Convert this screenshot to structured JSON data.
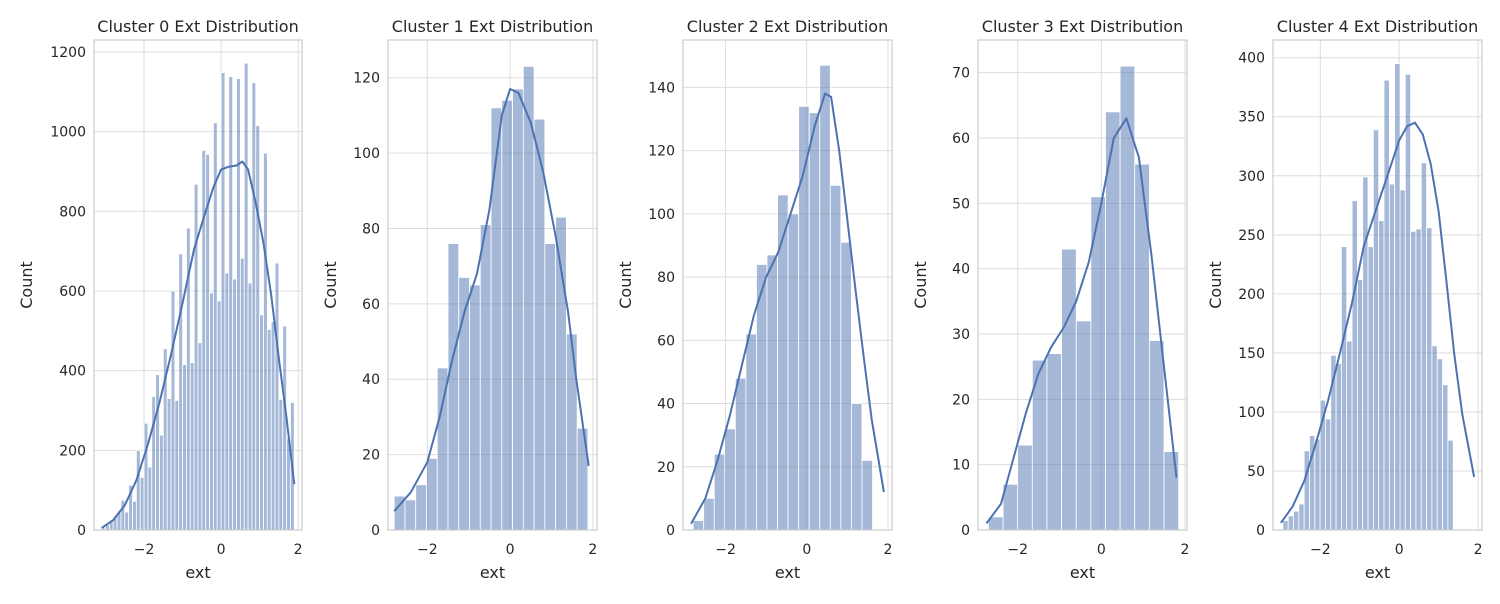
{
  "chart_data": [
    {
      "type": "bar",
      "title": "Cluster 0 Ext Distribution",
      "xlabel": "ext",
      "ylabel": "Count",
      "xlim": [
        -3.3,
        2.1
      ],
      "ylim": [
        0,
        1230
      ],
      "xticks": [
        -2,
        0,
        2
      ],
      "yticks": [
        0,
        200,
        400,
        600,
        800,
        1000,
        1200
      ],
      "grid": true,
      "bin_start": -3.1,
      "bin_width": 0.1,
      "values": [
        5,
        12,
        22,
        35,
        48,
        75,
        45,
        112,
        72,
        200,
        132,
        268,
        158,
        335,
        390,
        238,
        455,
        330,
        600,
        325,
        693,
        415,
        758,
        420,
        868,
        470,
        953,
        943,
        595,
        1022,
        575,
        1148,
        645,
        1138,
        630,
        1133,
        682,
        1172,
        620,
        1123,
        1015,
        540,
        946,
        503,
        523,
        670,
        328,
        512,
        230,
        320
      ],
      "kde": {
        "x": [
          -3.1,
          -2.8,
          -2.5,
          -2.2,
          -1.9,
          -1.6,
          -1.3,
          -1.0,
          -0.7,
          -0.4,
          -0.2,
          0.0,
          0.2,
          0.4,
          0.55,
          0.7,
          0.9,
          1.1,
          1.3,
          1.5,
          1.7,
          1.9
        ],
        "y": [
          5,
          25,
          62,
          125,
          215,
          320,
          440,
          570,
          705,
          800,
          860,
          905,
          912,
          915,
          925,
          905,
          820,
          720,
          590,
          430,
          280,
          115
        ]
      }
    },
    {
      "type": "bar",
      "title": "Cluster 1 Ext Distribution",
      "xlabel": "ext",
      "ylabel": "Count",
      "xlim": [
        -2.95,
        2.1
      ],
      "ylim": [
        0,
        130
      ],
      "xticks": [
        -2,
        0,
        2
      ],
      "yticks": [
        0,
        20,
        40,
        60,
        80,
        100,
        120
      ],
      "grid": true,
      "bin_start": -2.8,
      "bin_width": 0.26,
      "values": [
        9,
        8,
        12,
        19,
        43,
        76,
        67,
        65,
        81,
        112,
        114,
        117,
        123,
        109,
        76,
        83,
        52,
        27
      ],
      "kde": {
        "x": [
          -2.8,
          -2.4,
          -2.0,
          -1.7,
          -1.4,
          -1.1,
          -0.8,
          -0.5,
          -0.2,
          0.0,
          0.2,
          0.5,
          0.8,
          1.1,
          1.4,
          1.6,
          1.9
        ],
        "y": [
          5,
          10,
          18,
          30,
          45,
          58,
          68,
          85,
          110,
          117,
          116,
          108,
          95,
          78,
          58,
          40,
          17
        ]
      }
    },
    {
      "type": "bar",
      "title": "Cluster 2 Ext Distribution",
      "xlabel": "ext",
      "ylabel": "Count",
      "xlim": [
        -3.05,
        2.1
      ],
      "ylim": [
        0,
        155
      ],
      "xticks": [
        -2,
        0,
        2
      ],
      "yticks": [
        0,
        20,
        40,
        60,
        80,
        100,
        120,
        140
      ],
      "grid": true,
      "bin_start": -2.8,
      "bin_width": 0.26,
      "values": [
        3,
        10,
        24,
        32,
        48,
        62,
        84,
        87,
        106,
        100,
        134,
        132,
        147,
        109,
        91,
        40,
        22
      ],
      "kde": {
        "x": [
          -2.85,
          -2.5,
          -2.2,
          -1.9,
          -1.6,
          -1.3,
          -1.0,
          -0.7,
          -0.4,
          -0.1,
          0.2,
          0.45,
          0.6,
          0.8,
          1.0,
          1.2,
          1.4,
          1.6,
          1.9
        ],
        "y": [
          2,
          10,
          22,
          36,
          52,
          68,
          80,
          88,
          100,
          112,
          128,
          138,
          137,
          120,
          98,
          76,
          55,
          35,
          12
        ]
      }
    },
    {
      "type": "bar",
      "title": "Cluster 3 Ext Distribution",
      "xlabel": "ext",
      "ylabel": "Count",
      "xlim": [
        -2.95,
        2.05
      ],
      "ylim": [
        0,
        75
      ],
      "xticks": [
        -2,
        0,
        2
      ],
      "yticks": [
        0,
        10,
        20,
        30,
        40,
        50,
        60,
        70
      ],
      "grid": true,
      "bin_start": -2.7,
      "bin_width": 0.35,
      "values": [
        2,
        7,
        13,
        26,
        27,
        43,
        32,
        51,
        64,
        71,
        56,
        29,
        12
      ],
      "kde": {
        "x": [
          -2.75,
          -2.4,
          -2.1,
          -1.8,
          -1.5,
          -1.2,
          -0.9,
          -0.6,
          -0.3,
          0.0,
          0.3,
          0.6,
          0.9,
          1.2,
          1.5,
          1.8
        ],
        "y": [
          1,
          4,
          11,
          18,
          24,
          28,
          31,
          35,
          41,
          50,
          60,
          63,
          57,
          42,
          25,
          8
        ]
      }
    },
    {
      "type": "bar",
      "title": "Cluster 4 Ext Distribution",
      "xlabel": "ext",
      "ylabel": "Count",
      "xlim": [
        -3.2,
        2.1
      ],
      "ylim": [
        0,
        415
      ],
      "xticks": [
        -2,
        0,
        2
      ],
      "yticks": [
        0,
        50,
        100,
        150,
        200,
        250,
        300,
        350,
        400
      ],
      "grid": true,
      "bin_start": -2.95,
      "bin_width": 0.135,
      "values": [
        8,
        12,
        16,
        22,
        67,
        80,
        77,
        110,
        94,
        148,
        141,
        240,
        160,
        279,
        212,
        299,
        240,
        339,
        262,
        381,
        293,
        395,
        288,
        386,
        253,
        255,
        311,
        256,
        156,
        145,
        123,
        76
      ],
      "kde": {
        "x": [
          -3.0,
          -2.7,
          -2.4,
          -2.1,
          -1.8,
          -1.5,
          -1.2,
          -0.9,
          -0.6,
          -0.3,
          0.0,
          0.2,
          0.4,
          0.6,
          0.8,
          1.0,
          1.2,
          1.4,
          1.6,
          1.9
        ],
        "y": [
          6,
          20,
          42,
          75,
          110,
          150,
          192,
          240,
          270,
          300,
          330,
          342,
          345,
          335,
          310,
          270,
          210,
          148,
          98,
          45
        ]
      }
    }
  ]
}
